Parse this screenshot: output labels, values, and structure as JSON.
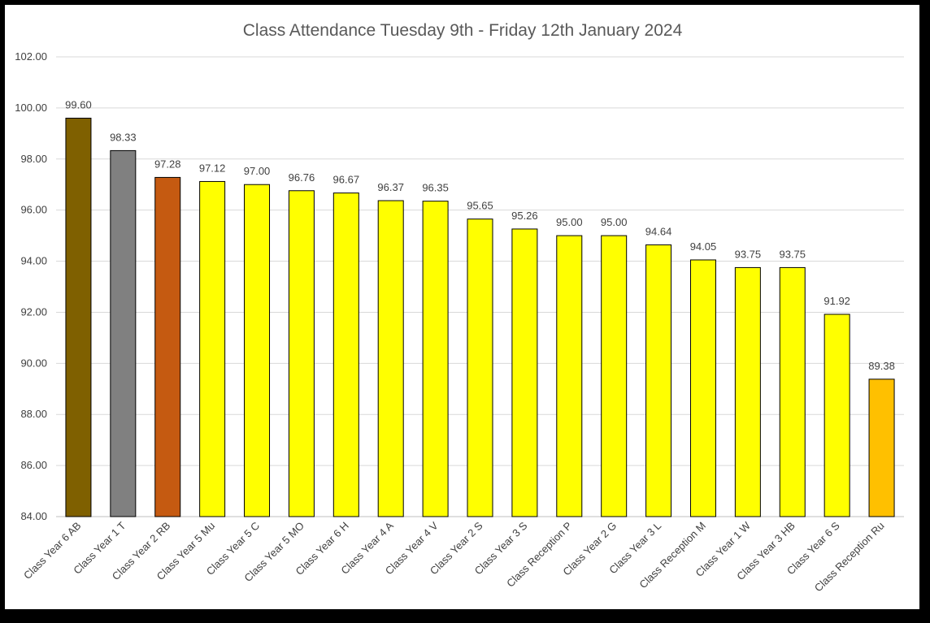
{
  "chart_data": {
    "type": "bar",
    "title": "Class Attendance Tuesday 9th - Friday 12th January 2024",
    "xlabel": "",
    "ylabel": "",
    "ylim": [
      84,
      102
    ],
    "yticks": [
      "84.00",
      "86.00",
      "88.00",
      "90.00",
      "92.00",
      "94.00",
      "96.00",
      "98.00",
      "100.00",
      "102.00"
    ],
    "grid": true,
    "legend": "none",
    "categories": [
      "Class Year 6 AB",
      "Class Year 1 T",
      "Class Year 2 RB",
      "Class Year 5 Mu",
      "Class Year 5 C",
      "Class Year 5 MO",
      "Class Year 6 H",
      "Class Year 4 A",
      "Class Year 4 V",
      "Class Year 2 S",
      "Class Year 3 S",
      "Class Reception P",
      "Class Year 2 G",
      "Class Year 3 L",
      "Class Reception M",
      "Class Year 1 W",
      "Class Year 3 HB",
      "Class Year 6 S",
      "Class Reception Ru"
    ],
    "values": [
      99.6,
      98.33,
      97.28,
      97.12,
      97.0,
      96.76,
      96.67,
      96.37,
      96.35,
      95.65,
      95.26,
      95.0,
      95.0,
      94.64,
      94.05,
      93.75,
      93.75,
      91.92,
      89.38
    ],
    "value_labels": [
      "99.60",
      "98.33",
      "97.28",
      "97.12",
      "97.00",
      "96.76",
      "96.67",
      "96.37",
      "96.35",
      "95.65",
      "95.26",
      "95.00",
      "95.00",
      "94.64",
      "94.05",
      "93.75",
      "93.75",
      "91.92",
      "89.38"
    ],
    "bar_colors": [
      "#7f6000",
      "#808080",
      "#c55a11",
      "#ffff00",
      "#ffff00",
      "#ffff00",
      "#ffff00",
      "#ffff00",
      "#ffff00",
      "#ffff00",
      "#ffff00",
      "#ffff00",
      "#ffff00",
      "#ffff00",
      "#ffff00",
      "#ffff00",
      "#ffff00",
      "#ffff00",
      "#ffc000"
    ]
  }
}
